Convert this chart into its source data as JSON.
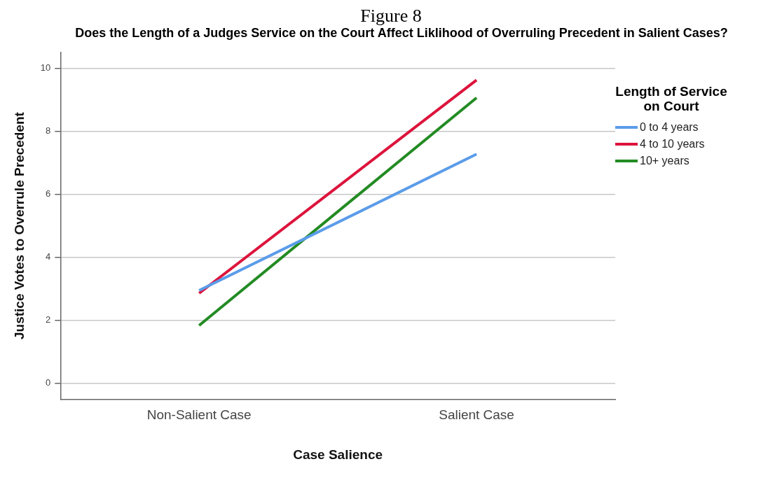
{
  "chart_data": {
    "type": "line",
    "title": "Does the Length of a Judges Service on the Court Affect Liklihood of Overruling Precedent in Salient Cases?",
    "annotations": [
      "Figure 8"
    ],
    "xlabel": "Case Salience",
    "ylabel": "Justice Votes to Overrule Precedent",
    "legend_title": "Length of Service on Court",
    "categories": [
      "Non-Salient Case",
      "Salient Case"
    ],
    "series": [
      {
        "name": "0 to 4 years",
        "color": "#5b9cea",
        "values": [
          2.95,
          7.27
        ]
      },
      {
        "name": "4 to 10 years",
        "color": "#dc143c",
        "values": [
          2.86,
          9.62
        ]
      },
      {
        "name": "10+ years",
        "color": "#238b23",
        "values": [
          1.84,
          9.06
        ]
      }
    ],
    "ylim": [
      -0.5,
      10.5
    ],
    "yticks": [
      0,
      2,
      4,
      6,
      8,
      10
    ],
    "grid": "y",
    "legend": "right",
    "marker": "none",
    "line_style": "solid"
  }
}
